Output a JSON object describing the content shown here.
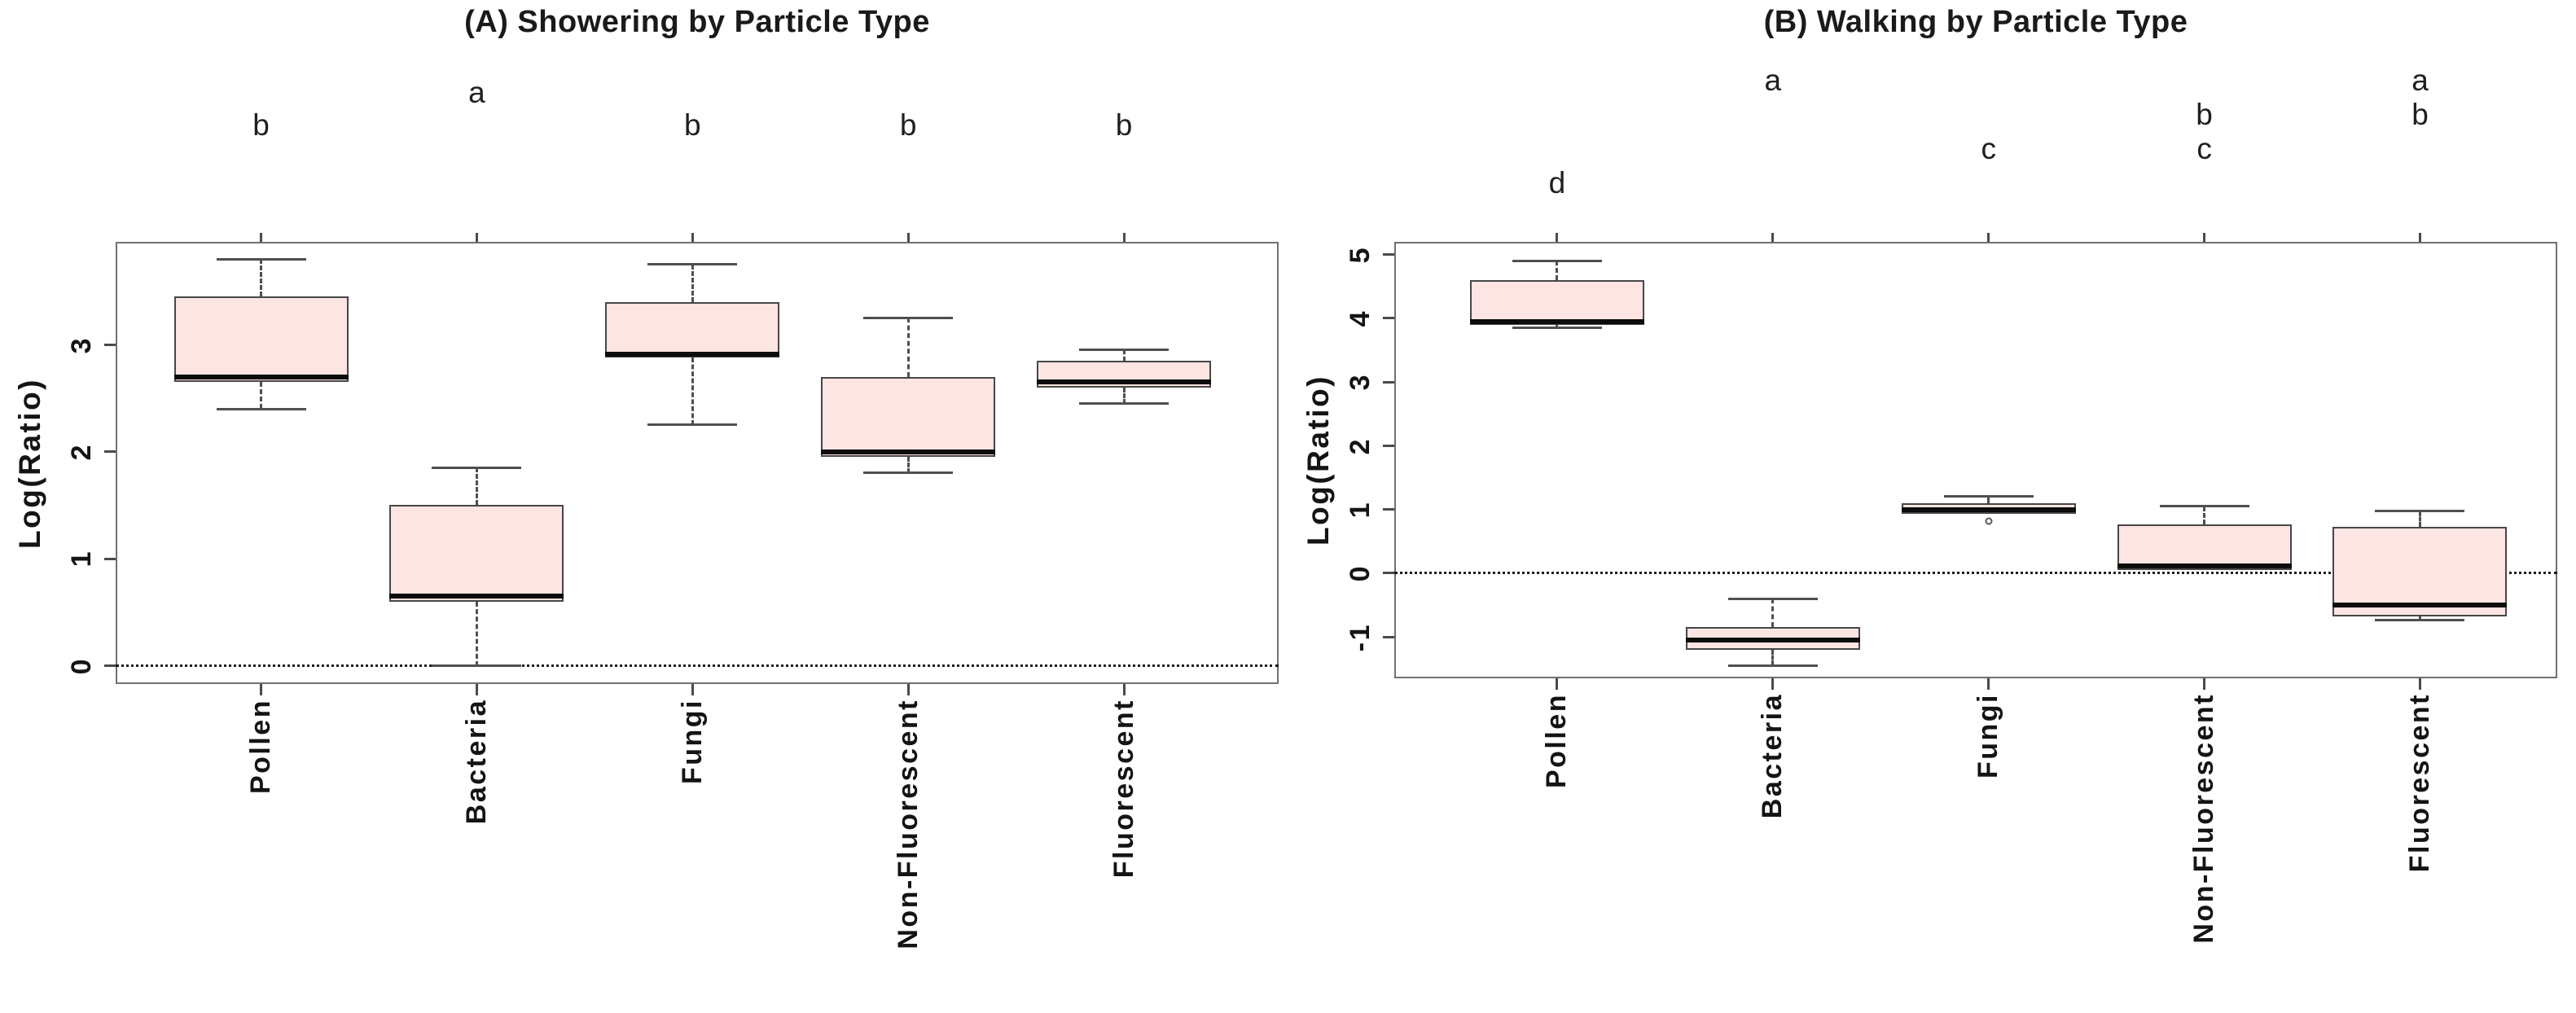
{
  "page": {
    "background": "#ffffff"
  },
  "styles": {
    "box_fill": "#fce5e2",
    "box_border": "#474747",
    "median_color": "#0c0c0c",
    "whisker_color": "#4f4f4f",
    "frame_color": "#707070",
    "zero_line_color": "#1c1c1c",
    "text_color": "#161616"
  },
  "chart_data": [
    {
      "type": "boxplot",
      "title": "(A) Showering by Particle Type",
      "ylabel": "Log(Ratio)",
      "categories": [
        "Pollen",
        "Bacteria",
        "Fungi",
        "Non-Fluorescent",
        "Fluorescent"
      ],
      "yticks": [
        0,
        1,
        2,
        3
      ],
      "ylim": [
        -0.17,
        3.96
      ],
      "zero_line": 0,
      "grid": false,
      "legend": "none",
      "tick_label_orientation": "vertical",
      "sig_letters": [
        [
          "b"
        ],
        [
          "a"
        ],
        [
          "b"
        ],
        [
          "b"
        ],
        [
          "b"
        ]
      ],
      "boxes": [
        {
          "category": "Pollen",
          "low": 2.4,
          "q1": 2.65,
          "median": 2.7,
          "q3": 3.45,
          "high": 3.8,
          "outliers": []
        },
        {
          "category": "Bacteria",
          "low": 0.0,
          "q1": 0.6,
          "median": 0.65,
          "q3": 1.5,
          "high": 1.85,
          "outliers": []
        },
        {
          "category": "Fungi",
          "low": 2.25,
          "q1": 2.88,
          "median": 2.9,
          "q3": 3.4,
          "high": 3.75,
          "outliers": []
        },
        {
          "category": "Non-Fluorescent",
          "low": 1.8,
          "q1": 1.95,
          "median": 2.0,
          "q3": 2.7,
          "high": 3.25,
          "outliers": []
        },
        {
          "category": "Fluorescent",
          "low": 2.45,
          "q1": 2.6,
          "median": 2.65,
          "q3": 2.85,
          "high": 2.95,
          "outliers": []
        }
      ]
    },
    {
      "type": "boxplot",
      "title": "(B) Walking by Particle Type",
      "ylabel": "Log(Ratio)",
      "categories": [
        "Pollen",
        "Bacteria",
        "Fungi",
        "Non-Fluorescent",
        "Fluorescent"
      ],
      "yticks": [
        -1,
        0,
        1,
        2,
        3,
        4,
        5
      ],
      "ylim": [
        -1.65,
        5.2
      ],
      "zero_line": 0,
      "grid": false,
      "legend": "none",
      "tick_label_orientation": "vertical",
      "sig_letters": [
        [
          "d"
        ],
        [
          "a"
        ],
        [
          "c"
        ],
        [
          "b",
          "c"
        ],
        [
          "a",
          "b"
        ]
      ],
      "boxes": [
        {
          "category": "Pollen",
          "low": 3.85,
          "q1": 3.9,
          "median": 3.95,
          "q3": 4.6,
          "high": 4.9,
          "outliers": []
        },
        {
          "category": "Bacteria",
          "low": -1.45,
          "q1": -1.2,
          "median": -1.05,
          "q3": -0.85,
          "high": -0.4,
          "outliers": []
        },
        {
          "category": "Fungi",
          "low": 0.93,
          "q1": 0.93,
          "median": 1.0,
          "q3": 1.1,
          "high": 1.2,
          "outliers": [
            0.82
          ]
        },
        {
          "category": "Non-Fluorescent",
          "low": 0.05,
          "q1": 0.05,
          "median": 0.12,
          "q3": 0.77,
          "high": 1.05,
          "outliers": []
        },
        {
          "category": "Fluorescent",
          "low": -0.74,
          "q1": -0.68,
          "median": -0.5,
          "q3": 0.73,
          "high": 0.97,
          "outliers": []
        }
      ]
    }
  ]
}
